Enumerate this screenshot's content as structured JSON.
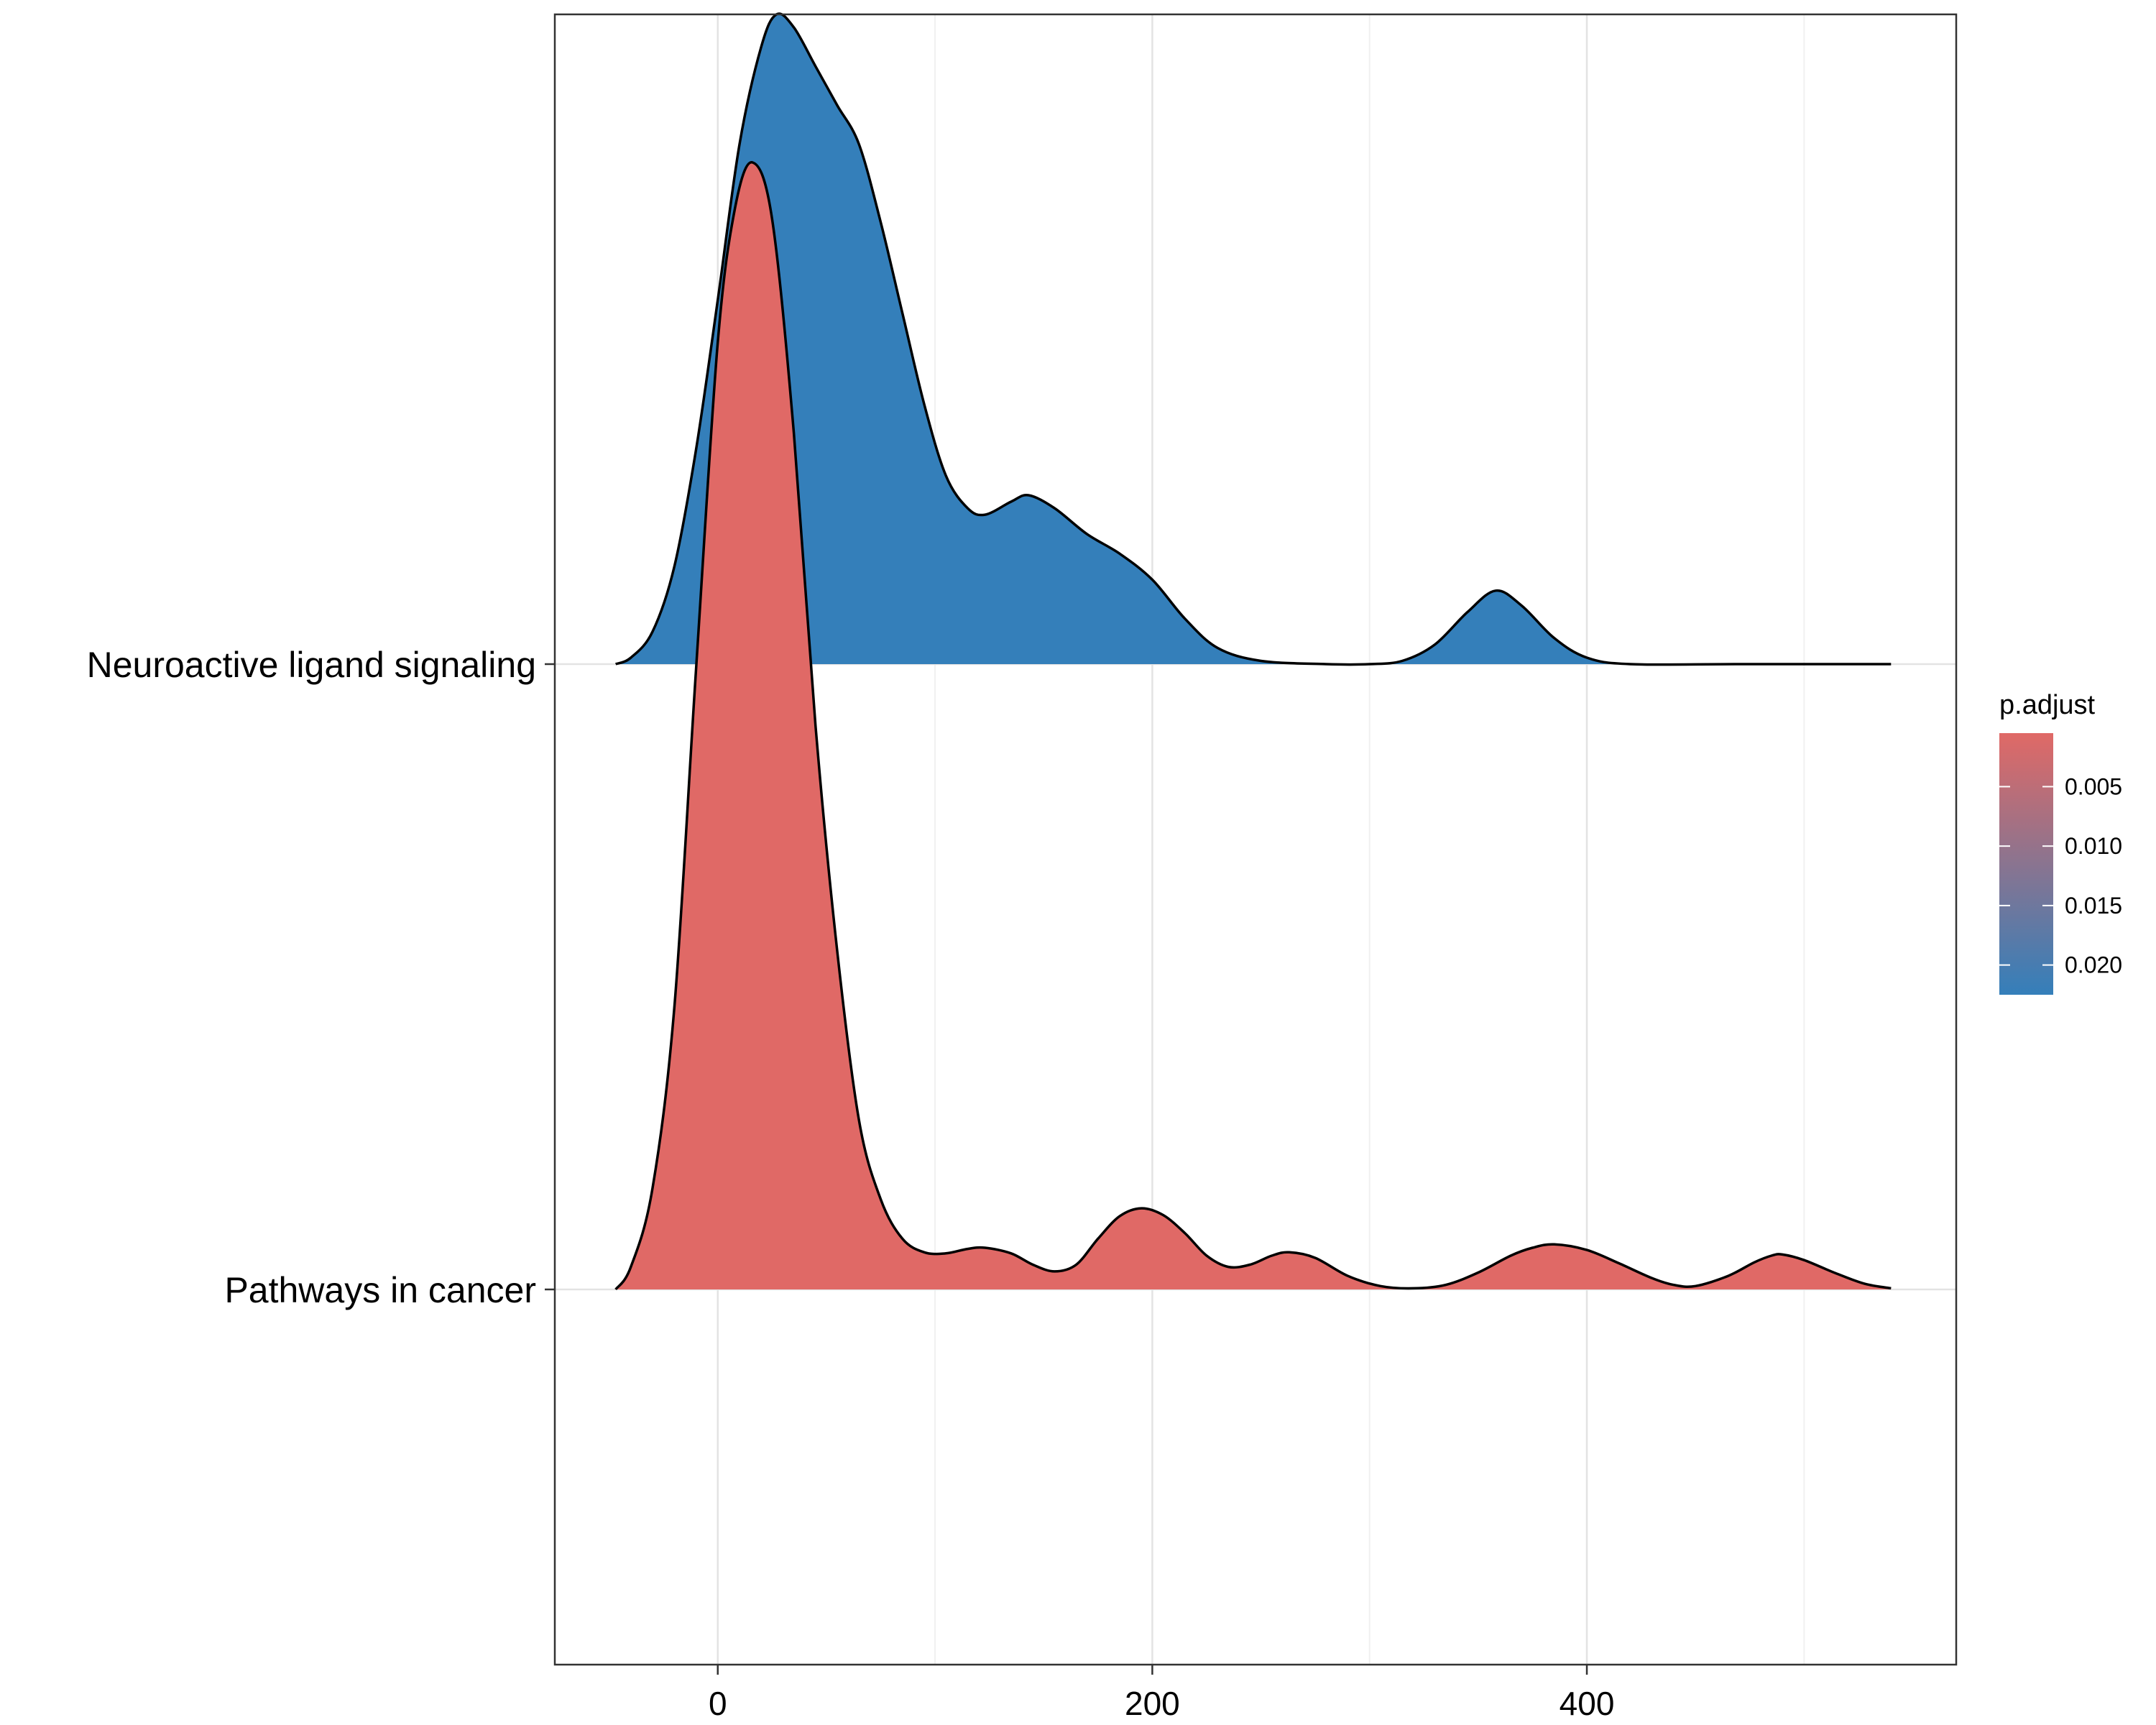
{
  "chart_data": {
    "type": "ridgeline",
    "xlim": [
      -75,
      570
    ],
    "x_ticks": [
      0,
      200,
      400
    ],
    "x_minor_ticks": [
      100,
      300,
      500
    ],
    "grid": true,
    "title": "",
    "xlabel": "",
    "ylabel": "",
    "categories": [
      "Neuroactive ligand signaling",
      "Pathways in cancer"
    ],
    "series": [
      {
        "name": "Neuroactive ligand signaling",
        "p_adjust": 0.0225,
        "fill": "#347FBA",
        "points": [
          [
            -47,
            0.0
          ],
          [
            -40,
            0.01
          ],
          [
            -30,
            0.05
          ],
          [
            -20,
            0.15
          ],
          [
            -10,
            0.33
          ],
          [
            0,
            0.56
          ],
          [
            10,
            0.8
          ],
          [
            20,
            0.95
          ],
          [
            27,
            1.0
          ],
          [
            35,
            0.98
          ],
          [
            45,
            0.92
          ],
          [
            55,
            0.86
          ],
          [
            65,
            0.8
          ],
          [
            75,
            0.68
          ],
          [
            85,
            0.54
          ],
          [
            95,
            0.4
          ],
          [
            105,
            0.29
          ],
          [
            115,
            0.24
          ],
          [
            123,
            0.23
          ],
          [
            135,
            0.25
          ],
          [
            143,
            0.26
          ],
          [
            155,
            0.24
          ],
          [
            170,
            0.2
          ],
          [
            185,
            0.17
          ],
          [
            200,
            0.13
          ],
          [
            215,
            0.07
          ],
          [
            230,
            0.025
          ],
          [
            250,
            0.005
          ],
          [
            280,
            0.0
          ],
          [
            300,
            0.0
          ],
          [
            315,
            0.005
          ],
          [
            330,
            0.03
          ],
          [
            345,
            0.08
          ],
          [
            358,
            0.113
          ],
          [
            370,
            0.09
          ],
          [
            385,
            0.04
          ],
          [
            400,
            0.01
          ],
          [
            420,
            0.0
          ],
          [
            470,
            0.0
          ],
          [
            540,
            0.0
          ]
        ]
      },
      {
        "name": "Pathways in cancer",
        "p_adjust": 0.0005,
        "fill": "#E06966",
        "points": [
          [
            -47,
            0.0
          ],
          [
            -40,
            0.02
          ],
          [
            -30,
            0.09
          ],
          [
            -20,
            0.25
          ],
          [
            -10,
            0.55
          ],
          [
            0,
            0.84
          ],
          [
            8,
            0.96
          ],
          [
            16,
            1.0
          ],
          [
            25,
            0.95
          ],
          [
            35,
            0.76
          ],
          [
            45,
            0.5
          ],
          [
            55,
            0.3
          ],
          [
            65,
            0.15
          ],
          [
            75,
            0.08
          ],
          [
            85,
            0.045
          ],
          [
            95,
            0.033
          ],
          [
            105,
            0.032
          ],
          [
            115,
            0.036
          ],
          [
            123,
            0.037
          ],
          [
            135,
            0.032
          ],
          [
            145,
            0.022
          ],
          [
            155,
            0.016
          ],
          [
            165,
            0.022
          ],
          [
            175,
            0.045
          ],
          [
            185,
            0.065
          ],
          [
            195,
            0.072
          ],
          [
            205,
            0.066
          ],
          [
            215,
            0.05
          ],
          [
            225,
            0.03
          ],
          [
            235,
            0.02
          ],
          [
            245,
            0.022
          ],
          [
            255,
            0.03
          ],
          [
            263,
            0.033
          ],
          [
            275,
            0.028
          ],
          [
            290,
            0.012
          ],
          [
            305,
            0.003
          ],
          [
            320,
            0.001
          ],
          [
            335,
            0.004
          ],
          [
            350,
            0.015
          ],
          [
            365,
            0.03
          ],
          [
            375,
            0.037
          ],
          [
            385,
            0.04
          ],
          [
            400,
            0.035
          ],
          [
            415,
            0.023
          ],
          [
            430,
            0.01
          ],
          [
            440,
            0.004
          ],
          [
            450,
            0.003
          ],
          [
            465,
            0.012
          ],
          [
            477,
            0.024
          ],
          [
            485,
            0.03
          ],
          [
            490,
            0.031
          ],
          [
            500,
            0.026
          ],
          [
            515,
            0.014
          ],
          [
            528,
            0.005
          ],
          [
            540,
            0.001
          ]
        ]
      }
    ],
    "legend": {
      "title": "p.adjust",
      "position": "right",
      "color_low": "#E06966",
      "color_high": "#347FBA",
      "range": [
        0.0005,
        0.0225
      ],
      "labels": [
        "0.005",
        "0.010",
        "0.015",
        "0.020"
      ]
    }
  }
}
